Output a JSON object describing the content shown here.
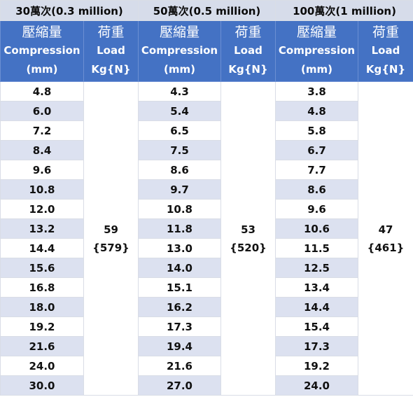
{
  "groups": [
    {
      "title": "30萬次(0.3 million)"
    },
    {
      "title": "50萬次(0.5 million)"
    },
    {
      "title": "100萬次(1 million)"
    }
  ],
  "header": {
    "compression_zh": "壓縮量",
    "compression_en": "Compression",
    "compression_unit": "(mm)",
    "load_zh": "荷重",
    "load_en": "Load",
    "load_unit": "Kg{N}"
  },
  "loads": [
    {
      "kg": "59",
      "n": "{579}"
    },
    {
      "kg": "53",
      "n": "{520}"
    },
    {
      "kg": "47",
      "n": "{461}"
    }
  ],
  "rows": [
    [
      "4.8",
      "4.3",
      "3.8"
    ],
    [
      "6.0",
      "5.4",
      "4.8"
    ],
    [
      "7.2",
      "6.5",
      "5.8"
    ],
    [
      "8.4",
      "7.5",
      "6.7"
    ],
    [
      "9.6",
      "8.6",
      "7.7"
    ],
    [
      "10.8",
      "9.7",
      "8.6"
    ],
    [
      "12.0",
      "10.8",
      "9.6"
    ],
    [
      "13.2",
      "11.8",
      "10.6"
    ],
    [
      "14.4",
      "13.0",
      "11.5"
    ],
    [
      "15.6",
      "14.0",
      "12.5"
    ],
    [
      "16.8",
      "15.1",
      "13.4"
    ],
    [
      "18.0",
      "16.2",
      "14.4"
    ],
    [
      "19.2",
      "17.3",
      "15.4"
    ],
    [
      "21.6",
      "19.4",
      "17.3"
    ],
    [
      "24.0",
      "21.6",
      "19.2"
    ],
    [
      "30.0",
      "27.0",
      "24.0"
    ]
  ]
}
